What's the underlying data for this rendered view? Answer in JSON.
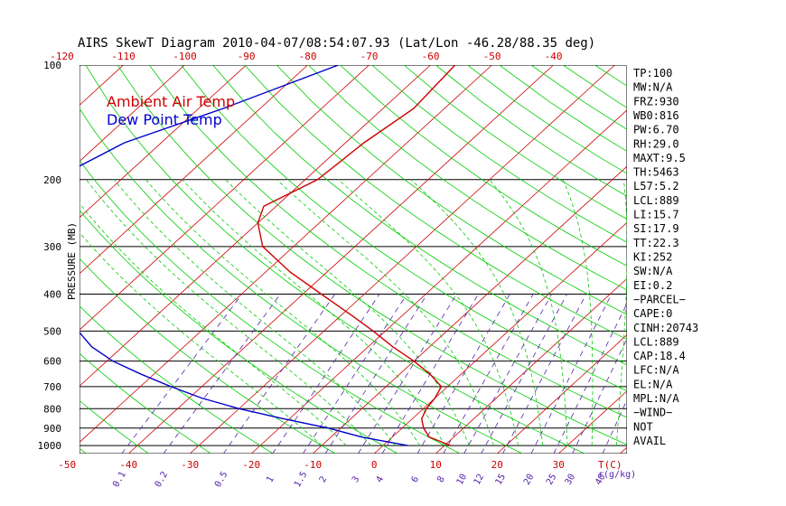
{
  "chart_data": {
    "type": "line",
    "title": "AIRS SkewT Diagram 2010-04-07/08:54:07.93 (Lat/Lon -46.28/88.35 deg)",
    "ylabel": "PRESSURE (MB)",
    "xlabel": "T(C)",
    "mixing_unit": "r(g/kg)",
    "legend_placement": "top-left",
    "pressure_ticks": [
      "100",
      "200",
      "300",
      "400",
      "500",
      "600",
      "700",
      "800",
      "900",
      "1000"
    ],
    "pressure_values": [
      100,
      200,
      300,
      400,
      500,
      600,
      700,
      800,
      900,
      1000
    ],
    "top_ticks": [
      "-120",
      "-110",
      "-100",
      "-90",
      "-80",
      "-70",
      "-60",
      "-50",
      "-40"
    ],
    "bottom_ticks": [
      "-50",
      "-40",
      "-30",
      "-20",
      "-10",
      "0",
      "10",
      "20",
      "30"
    ],
    "mixing_ratio_labels": [
      "0.1",
      "0.2",
      "0.5",
      "1",
      "1.5",
      "2",
      "3",
      "4",
      "6",
      "8",
      "10",
      "12",
      "15",
      "20",
      "25",
      "30",
      "40"
    ],
    "ylim": [
      1050,
      100
    ],
    "xlim": [
      -55,
      45
    ],
    "colors": {
      "ambient": "#cc0000",
      "dew": "#0000cc",
      "adiabat": "#00cc00",
      "isotherm": "#cc0000",
      "mixing": "#5522aa"
    },
    "series": [
      {
        "name": "Ambient Air Temp",
        "points": [
          [
            100,
            -56
          ],
          [
            130,
            -55
          ],
          [
            160,
            -57
          ],
          [
            200,
            -58
          ],
          [
            235,
            -62
          ],
          [
            260,
            -60
          ],
          [
            300,
            -55
          ],
          [
            350,
            -46
          ],
          [
            400,
            -37
          ],
          [
            450,
            -29
          ],
          [
            500,
            -22
          ],
          [
            550,
            -16
          ],
          [
            600,
            -10
          ],
          [
            650,
            -5
          ],
          [
            700,
            -1
          ],
          [
            750,
            0
          ],
          [
            800,
            0.5
          ],
          [
            850,
            1.5
          ],
          [
            900,
            3.5
          ],
          [
            950,
            6
          ],
          [
            1000,
            11
          ]
        ]
      },
      {
        "name": "Dew Point Temp",
        "points": [
          [
            100,
            -75
          ],
          [
            130,
            -86
          ],
          [
            160,
            -96
          ],
          [
            200,
            -101
          ],
          [
            235,
            -97
          ],
          [
            260,
            -95
          ],
          [
            300,
            -91
          ],
          [
            350,
            -86
          ],
          [
            400,
            -80
          ],
          [
            450,
            -75
          ],
          [
            500,
            -70
          ],
          [
            550,
            -65
          ],
          [
            600,
            -59
          ],
          [
            650,
            -52
          ],
          [
            700,
            -45
          ],
          [
            750,
            -38
          ],
          [
            800,
            -30
          ],
          [
            850,
            -21
          ],
          [
            900,
            -12
          ],
          [
            950,
            -5
          ],
          [
            1000,
            4
          ]
        ]
      }
    ]
  },
  "indices": [
    "TP:100",
    "MW:N/A",
    "FRZ:930",
    "WB0:816",
    "PW:6.70",
    "RH:29.0",
    "MAXT:9.5",
    "TH:5463",
    "L57:5.2",
    "LCL:889",
    "LI:15.7",
    "SI:17.9",
    "TT:22.3",
    "KI:252",
    "SW:N/A",
    "EI:0.2",
    "−PARCEL−",
    "CAPE:0",
    "CINH:20743",
    "LCL:889",
    "CAP:18.4",
    "LFC:N/A",
    "EL:N/A",
    "MPL:N/A",
    "−WIND−",
    "NOT",
    "AVAIL"
  ]
}
